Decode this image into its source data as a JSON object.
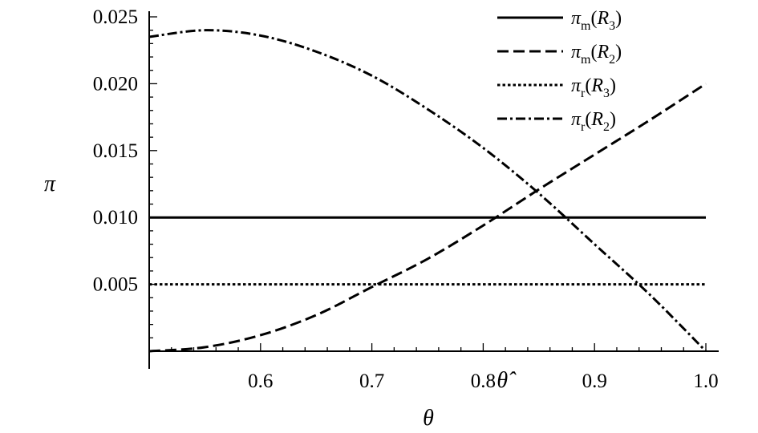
{
  "chart_data": {
    "type": "line",
    "xlabel": "θ",
    "ylabel": "π",
    "xlim": [
      0.5,
      1.0
    ],
    "ylim": [
      0,
      0.025
    ],
    "x_ticks": [
      "0.6",
      "0.7",
      "0.8",
      "0.9",
      "1.0"
    ],
    "x_tick_values": [
      0.6,
      0.7,
      0.8,
      0.9,
      1.0
    ],
    "y_ticks": [
      "0.005",
      "0.010",
      "0.015",
      "0.020",
      "0.025"
    ],
    "y_tick_values": [
      0.005,
      0.01,
      0.015,
      0.02,
      0.025
    ],
    "annotation": {
      "text": "θ̂",
      "x": 0.81
    },
    "legend_position": "top-right",
    "grid": false,
    "series": [
      {
        "legend": {
          "sym": "π",
          "sub": "m",
          "arg": "R",
          "argsub": "3"
        },
        "style": "solid",
        "x": [
          0.5,
          1.0
        ],
        "y": [
          0.01,
          0.01
        ]
      },
      {
        "legend": {
          "sym": "π",
          "sub": "m",
          "arg": "R",
          "argsub": "2"
        },
        "style": "dashed",
        "x": [
          0.5,
          0.55,
          0.6,
          0.65,
          0.7,
          0.75,
          0.8,
          0.85,
          0.9,
          0.95,
          1.0
        ],
        "y": [
          0.0,
          0.0003,
          0.0012,
          0.0027,
          0.0048,
          0.0069,
          0.0094,
          0.0121,
          0.0147,
          0.0173,
          0.02
        ]
      },
      {
        "legend": {
          "sym": "π",
          "sub": "r",
          "arg": "R",
          "argsub": "3"
        },
        "style": "dotted",
        "x": [
          0.5,
          1.0
        ],
        "y": [
          0.005,
          0.005
        ]
      },
      {
        "legend": {
          "sym": "π",
          "sub": "r",
          "arg": "R",
          "argsub": "2"
        },
        "style": "dashdot",
        "x": [
          0.5,
          0.55,
          0.6,
          0.65,
          0.7,
          0.75,
          0.8,
          0.85,
          0.9,
          0.95,
          1.0
        ],
        "y": [
          0.0235,
          0.024,
          0.0236,
          0.0224,
          0.0206,
          0.0181,
          0.0152,
          0.0118,
          0.008,
          0.0042,
          0.0
        ]
      }
    ]
  }
}
